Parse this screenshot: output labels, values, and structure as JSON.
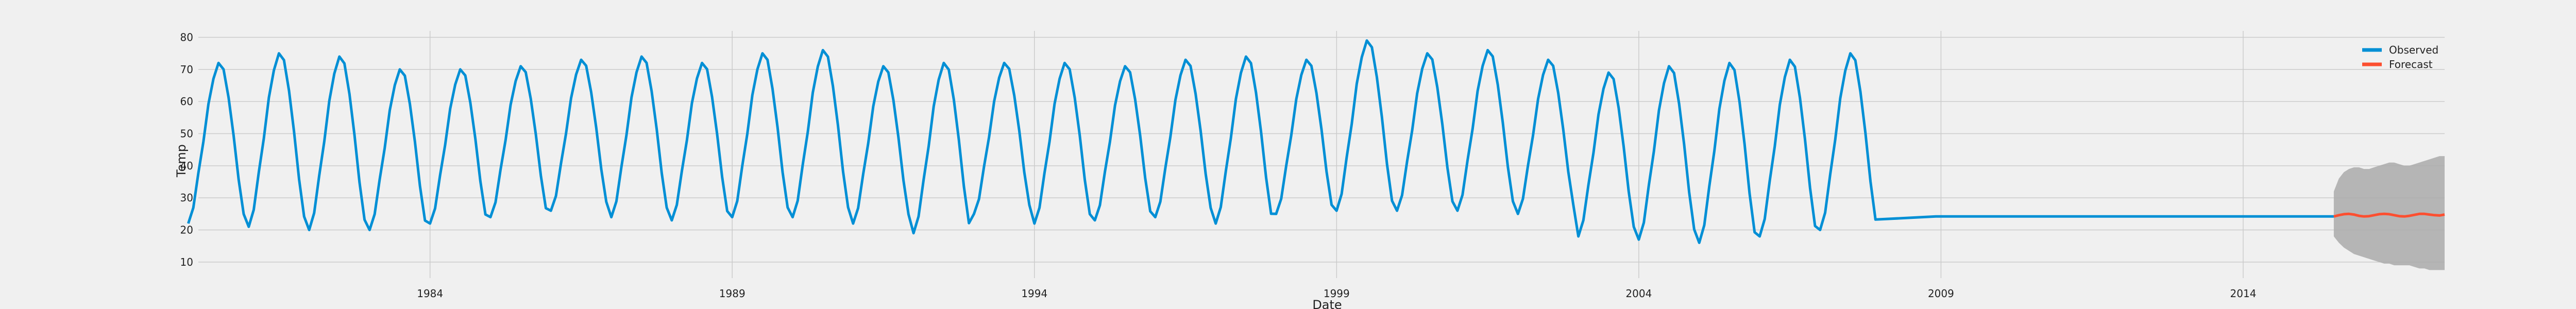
{
  "chart_data": {
    "type": "line",
    "title": "",
    "xlabel": "Date",
    "ylabel": "Temp",
    "x_ticks": [
      "1984",
      "1989",
      "1994",
      "1999",
      "2004",
      "2009",
      "2014"
    ],
    "y_ticks": [
      10,
      20,
      30,
      40,
      50,
      60,
      70,
      80
    ],
    "xlim": [
      "1980-03",
      "2017-05"
    ],
    "ylim": [
      5,
      82
    ],
    "grid": true,
    "legend_position": "top-right",
    "series": [
      {
        "name": "Observed",
        "color": "#008fd5",
        "cycle": {
          "start": "1980-01",
          "end": "2008-12",
          "monthly_pattern": [
            22,
            27,
            38,
            48,
            60,
            68,
            73,
            71,
            62,
            50,
            36,
            25
          ],
          "yearly_peak": [
            72,
            75,
            74,
            70,
            70,
            71,
            73,
            74,
            72,
            75,
            76,
            71,
            72,
            72,
            72,
            71,
            73,
            74,
            73,
            79,
            75,
            76,
            73,
            69,
            71,
            72,
            73,
            75
          ],
          "yearly_trough": [
            22,
            21,
            20,
            20,
            22,
            24,
            26,
            24,
            23,
            24,
            24,
            22,
            19,
            25,
            22,
            23,
            24,
            22,
            25,
            26,
            26,
            26,
            25,
            18,
            17,
            16,
            18,
            20
          ]
        },
        "flat": {
          "start": "2008-12",
          "end": "2015-07",
          "value": 24.2
        }
      },
      {
        "name": "Forecast",
        "color": "#fc4f30",
        "start": "2015-07",
        "end": "2017-05",
        "values": [
          24.2,
          24.6,
          24.9,
          25.0,
          24.8,
          24.4,
          24.2,
          24.3,
          24.6,
          24.9,
          25.0,
          24.9,
          24.6,
          24.3,
          24.2,
          24.4,
          24.7,
          25.0,
          25.0,
          24.8,
          24.6,
          24.5,
          24.8
        ],
        "interval_upper": [
          32,
          36,
          38,
          39,
          39.5,
          39.5,
          39,
          39,
          39.5,
          40,
          40.5,
          41,
          41,
          40.5,
          40,
          40,
          40.5,
          41,
          41.5,
          42,
          42.5,
          43,
          43
        ],
        "interval_lower": [
          18,
          16,
          14.5,
          13.5,
          12.5,
          12,
          11.5,
          11,
          10.5,
          10,
          9.5,
          9.5,
          9,
          9,
          9,
          9,
          8.5,
          8,
          8,
          7.5,
          7.5,
          7.5,
          7.5
        ],
        "interval_color": "#aaaaaa"
      }
    ]
  }
}
